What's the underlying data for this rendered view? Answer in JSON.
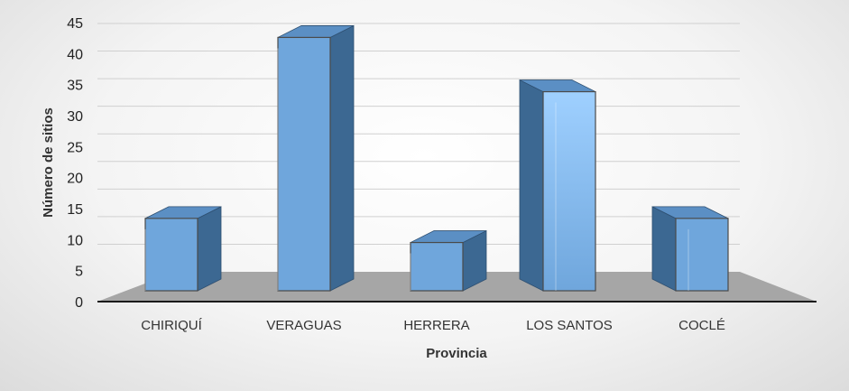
{
  "chart_data": {
    "type": "bar",
    "style": "3d-column",
    "title": "",
    "xlabel": "Provincia",
    "ylabel": "Número de sitios",
    "categories": [
      "CHIRIQUÍ",
      "VERAGUAS",
      "HERRERA",
      "LOS SANTOS",
      "COCLÉ"
    ],
    "values": [
      12,
      42,
      8,
      33,
      12
    ],
    "ylim": [
      0,
      45
    ],
    "yticks": [
      "0",
      "5",
      "10",
      "15",
      "20",
      "25",
      "30",
      "35",
      "40",
      "45"
    ],
    "grid": true,
    "legend": "none",
    "colors": {
      "bar_front": "#6fa6dc",
      "bar_front_highlight": "#9fd0ff",
      "bar_side": "#3c6892",
      "bar_top": "#5b8fc4",
      "floor": "#a6a6a6",
      "axis": "#1a1a1a",
      "grid": "#d0d0d0"
    }
  }
}
